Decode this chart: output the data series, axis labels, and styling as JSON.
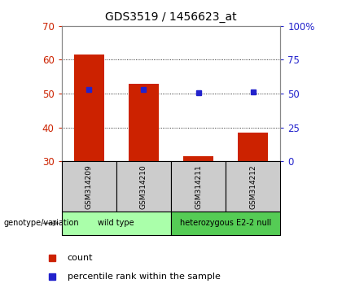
{
  "title": "GDS3519 / 1456623_at",
  "samples": [
    "GSM314209",
    "GSM314210",
    "GSM314211",
    "GSM314212"
  ],
  "count_values": [
    61.5,
    53.0,
    31.5,
    38.5
  ],
  "percentile_values": [
    53.0,
    53.0,
    50.5,
    51.5
  ],
  "ylim_left": [
    30,
    70
  ],
  "ylim_right": [
    0,
    100
  ],
  "yticks_left": [
    30,
    40,
    50,
    60,
    70
  ],
  "yticks_right": [
    0,
    25,
    50,
    75,
    100
  ],
  "ytick_labels_right": [
    "0",
    "25",
    "50",
    "75",
    "100%"
  ],
  "bar_color": "#cc2200",
  "dot_color": "#2222cc",
  "groups": [
    {
      "label": "wild type",
      "samples": [
        0,
        1
      ],
      "color": "#aaffaa"
    },
    {
      "label": "heterozygous E2-2 null",
      "samples": [
        2,
        3
      ],
      "color": "#55cc55"
    }
  ],
  "genotype_label": "genotype/variation",
  "legend_count": "count",
  "legend_percentile": "percentile rank within the sample",
  "bg_color": "#ffffff",
  "plot_bg": "#ffffff",
  "tick_label_color_left": "#cc2200",
  "tick_label_color_right": "#2222cc",
  "sample_box_color": "#cccccc",
  "bar_width": 0.55
}
